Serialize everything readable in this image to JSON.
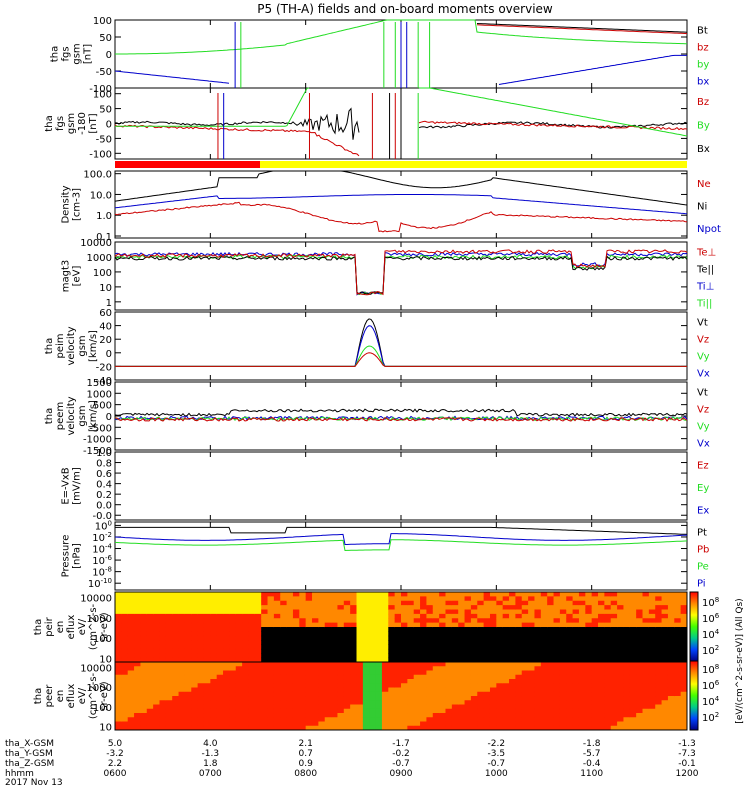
{
  "title": "P5 (TH-A) fields and on-board moments overview",
  "colors": {
    "black": "#000000",
    "red": "#cc0000",
    "green": "#22dd22",
    "blue": "#0000cc",
    "yellow": "#ffff00",
    "bar_red": "#ff0000"
  },
  "chart_data": [
    {
      "type": "line",
      "id": "fgs_gsm",
      "ylabel": [
        "tha",
        "fgs",
        "gsm",
        "[nT]"
      ],
      "ylim": [
        -100,
        100
      ],
      "yticks": [
        "100",
        "50",
        "0",
        "-50",
        "-100"
      ],
      "legend": [
        {
          "name": "Bt",
          "color": "#000000"
        },
        {
          "name": "bz",
          "color": "#cc0000"
        },
        {
          "name": "by",
          "color": "#22dd22"
        },
        {
          "name": "bx",
          "color": "#0000cc"
        }
      ]
    },
    {
      "type": "line",
      "id": "fgs_gsm_bar",
      "ylabel": [
        "tha",
        "fgs",
        "gsm",
        "-180",
        "[nT]"
      ],
      "ylim": [
        -120,
        120
      ],
      "yticks": [
        "100",
        "50",
        "0",
        "-50",
        "-100"
      ],
      "legend": [
        {
          "name": "Bz",
          "color": "#cc0000"
        },
        {
          "name": "By",
          "color": "#22dd22"
        },
        {
          "name": "Bx",
          "color": "#000000"
        }
      ]
    },
    {
      "type": "line",
      "id": "density",
      "scale": "log",
      "ylabel": [
        "Density",
        "[cm-3]"
      ],
      "ylim": [
        0.1,
        200
      ],
      "yticks": [
        "100.0",
        "10.0",
        "1.0",
        "0.1"
      ],
      "legend": [
        {
          "name": "Ne",
          "color": "#cc0000"
        },
        {
          "name": "Ni",
          "color": "#000000"
        },
        {
          "name": "Npot",
          "color": "#0000cc"
        }
      ]
    },
    {
      "type": "line",
      "id": "temperature",
      "scale": "log",
      "ylabel": [
        "magt3",
        "[eV]"
      ],
      "ylim": [
        1,
        10000
      ],
      "yticks": [
        "10000",
        "1000",
        "100",
        "10",
        "1"
      ],
      "legend": [
        {
          "name": "Te⊥",
          "color": "#cc0000"
        },
        {
          "name": "Te||",
          "color": "#000000"
        },
        {
          "name": "Ti⊥",
          "color": "#0000cc"
        },
        {
          "name": "Ti||",
          "color": "#22dd22"
        }
      ]
    },
    {
      "type": "line",
      "id": "peim_velocity",
      "ylabel": [
        "tha",
        "peim",
        "velocity",
        "gsm",
        "[km/s]"
      ],
      "ylim": [
        -40,
        60
      ],
      "yticks": [
        "60",
        "40",
        "20",
        "0",
        "-20",
        "-40"
      ],
      "legend": [
        {
          "name": "Vt",
          "color": "#000000"
        },
        {
          "name": "Vz",
          "color": "#cc0000"
        },
        {
          "name": "Vy",
          "color": "#22dd22"
        },
        {
          "name": "Vx",
          "color": "#0000cc"
        }
      ]
    },
    {
      "type": "line",
      "id": "peem_velocity",
      "ylabel": [
        "tha",
        "peem",
        "velocity",
        "gsm",
        "[km/s]"
      ],
      "ylim": [
        -1500,
        1500
      ],
      "yticks": [
        "1500",
        "1000",
        "500",
        "0",
        "-500",
        "-1000",
        "-1500"
      ],
      "legend": [
        {
          "name": "Vt",
          "color": "#000000"
        },
        {
          "name": "Vz",
          "color": "#cc0000"
        },
        {
          "name": "Vy",
          "color": "#22dd22"
        },
        {
          "name": "Vx",
          "color": "#0000cc"
        }
      ]
    },
    {
      "type": "line",
      "id": "efield",
      "ylabel": [
        "E=-VxB",
        "[mV/m]"
      ],
      "ylim": [
        -0.1,
        1.0
      ],
      "yticks": [
        "1.0",
        "0.8",
        "0.6",
        "0.4",
        "0.2",
        "0.0",
        "-0.0"
      ],
      "legend": [
        {
          "name": "Ez",
          "color": "#cc0000"
        },
        {
          "name": "Ey",
          "color": "#22dd22"
        },
        {
          "name": "Ex",
          "color": "#0000cc"
        }
      ]
    },
    {
      "type": "line",
      "id": "pressure",
      "scale": "log",
      "ylabel": [
        "Pressure",
        "[nPa]"
      ],
      "ylim": [
        1e-10,
        1
      ],
      "yticks": [
        {
          "b": "10",
          "e": "0"
        },
        {
          "b": "10",
          "e": "-2"
        },
        {
          "b": "10",
          "e": "-4"
        },
        {
          "b": "10",
          "e": "-6"
        },
        {
          "b": "10",
          "e": "-8"
        },
        {
          "b": "10",
          "e": "-10"
        }
      ],
      "legend": [
        {
          "name": "Pt",
          "color": "#000000"
        },
        {
          "name": "Pb",
          "color": "#cc0000"
        },
        {
          "name": "Pe",
          "color": "#22dd22"
        },
        {
          "name": "Pi",
          "color": "#0000cc"
        }
      ]
    },
    {
      "type": "heatmap",
      "id": "peir_spec",
      "ylabel": [
        "tha",
        "peir",
        "en",
        "eflux",
        "eV/",
        "(cm^2-s-",
        "sr-eV)"
      ],
      "ylim": [
        5,
        20000
      ],
      "yticks": [
        "10000",
        "1000",
        "100",
        "10"
      ]
    },
    {
      "type": "heatmap",
      "id": "peer_spec",
      "ylabel": [
        "tha",
        "peer",
        "en",
        "eflux",
        "eV/",
        "(cm^2-s-",
        "sr-eV)"
      ],
      "ylim": [
        5,
        20000
      ],
      "yticks": [
        "10000",
        "1000",
        "100",
        "10"
      ]
    }
  ],
  "colorbar": {
    "label": "[eV/(cm^2-s-sr-eV)] (All Qs)",
    "ticks_top": [
      {
        "b": "10",
        "e": "8"
      },
      {
        "b": "10",
        "e": "6"
      },
      {
        "b": "10",
        "e": "4"
      },
      {
        "b": "10",
        "e": "2"
      }
    ],
    "ticks_bottom": [
      {
        "b": "10",
        "e": "8"
      },
      {
        "b": "10",
        "e": "6"
      },
      {
        "b": "10",
        "e": "4"
      },
      {
        "b": "10",
        "e": "2"
      }
    ]
  },
  "xaxis": {
    "rows": [
      {
        "label": "tha_X-GSM",
        "values": [
          "5.0",
          "4.0",
          "2.1",
          "-1.7",
          "-2.2",
          "-1.8",
          "-1.3"
        ]
      },
      {
        "label": "tha_Y-GSM",
        "values": [
          "-3.2",
          "-1.3",
          "0.7",
          "-0.2",
          "-3.5",
          "-5.7",
          "-7.3"
        ]
      },
      {
        "label": "tha_Z-GSM",
        "values": [
          "2.2",
          "1.8",
          "0.9",
          "-0.7",
          "-0.7",
          "-0.4",
          "-0.1"
        ]
      },
      {
        "label": "hhmm",
        "values": [
          "0600",
          "0700",
          "0800",
          "0900",
          "1000",
          "1100",
          "1200"
        ]
      }
    ],
    "date": "2017 Nov 13"
  }
}
